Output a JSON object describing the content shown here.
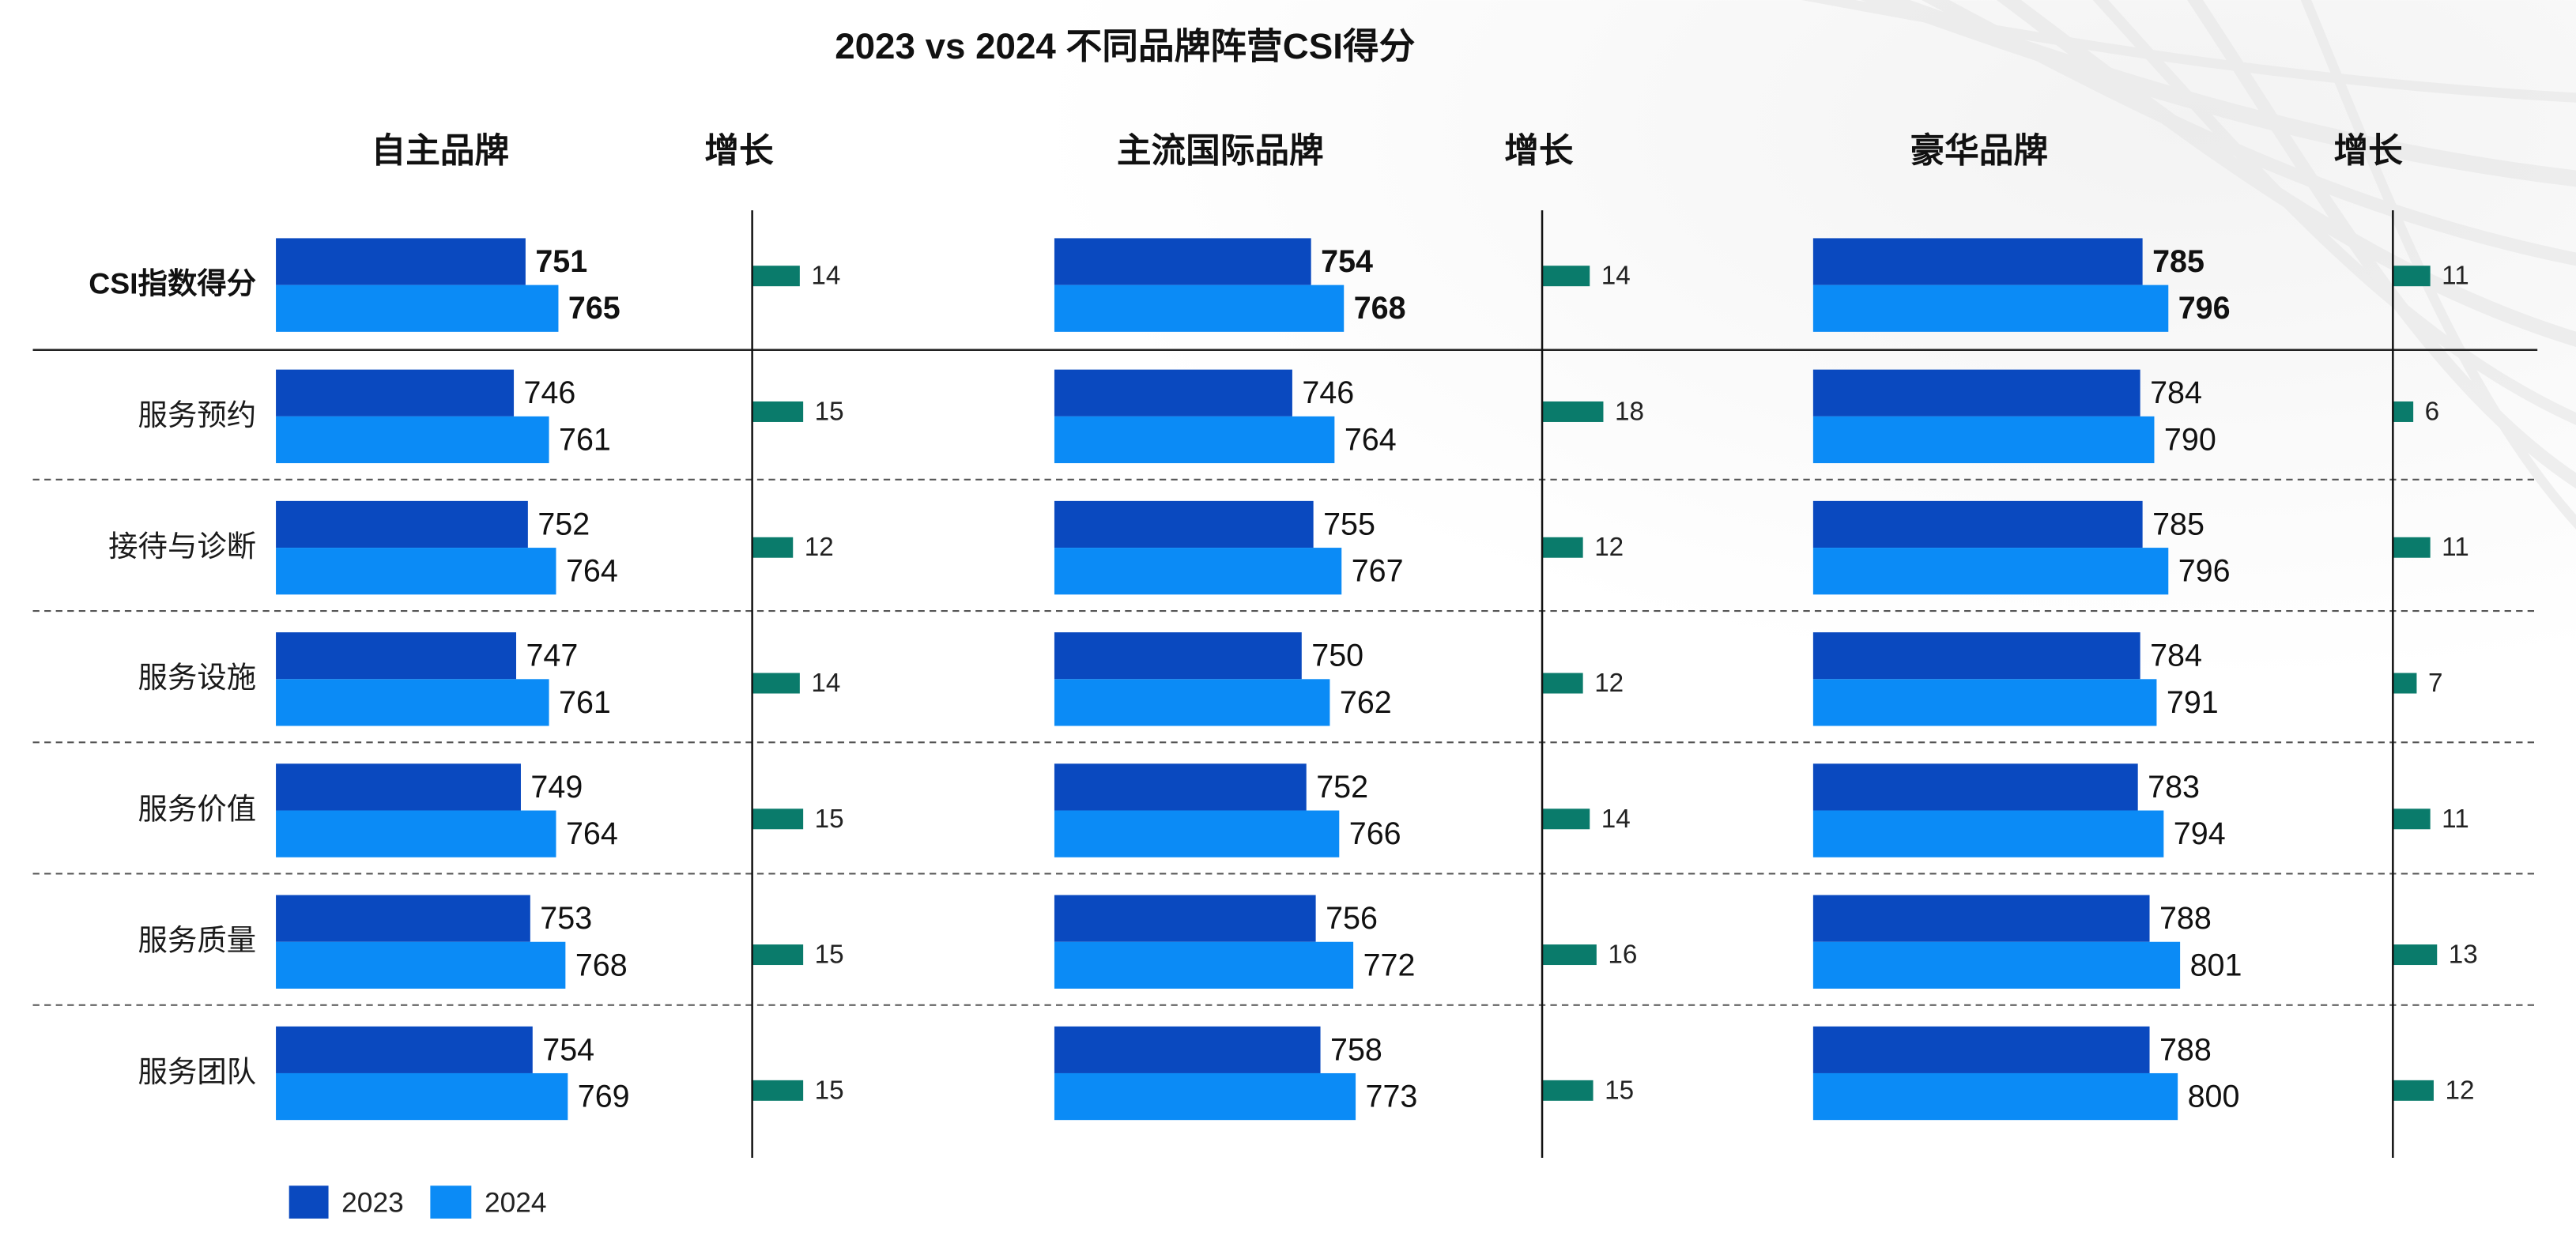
{
  "chart_data": {
    "type": "bar",
    "orientation": "horizontal",
    "title": "2023 vs 2024 不同品牌阵营CSI得分",
    "categories": [
      "CSI指数得分",
      "服务预约",
      "接待与诊断",
      "服务设施",
      "服务价值",
      "服务质量",
      "服务团队"
    ],
    "series": [
      {
        "name": "2023",
        "color": "#0a49bf"
      },
      {
        "name": "2024",
        "color": "#0b8bf6"
      }
    ],
    "growth_color": "#0a7b6b",
    "grid": false,
    "legend_position": "bottom-left",
    "panels": [
      {
        "name": "自主品牌",
        "values": {
          "2023": [
            751,
            746,
            752,
            747,
            749,
            753,
            754
          ],
          "2024": [
            765,
            761,
            764,
            761,
            764,
            768,
            769
          ]
        },
        "growth_label": "增长",
        "growth": [
          14,
          15,
          12,
          14,
          15,
          15,
          15
        ]
      },
      {
        "name": "主流国际品牌",
        "values": {
          "2023": [
            754,
            746,
            755,
            750,
            752,
            756,
            758
          ],
          "2024": [
            768,
            764,
            767,
            762,
            766,
            772,
            773
          ]
        },
        "growth_label": "增长",
        "growth": [
          14,
          18,
          12,
          12,
          14,
          16,
          15
        ]
      },
      {
        "name": "豪华品牌",
        "values": {
          "2023": [
            785,
            784,
            785,
            784,
            783,
            788,
            788
          ],
          "2024": [
            796,
            790,
            796,
            791,
            794,
            801,
            800
          ]
        },
        "growth_label": "增长",
        "growth": [
          11,
          6,
          11,
          7,
          11,
          13,
          12
        ]
      }
    ]
  }
}
